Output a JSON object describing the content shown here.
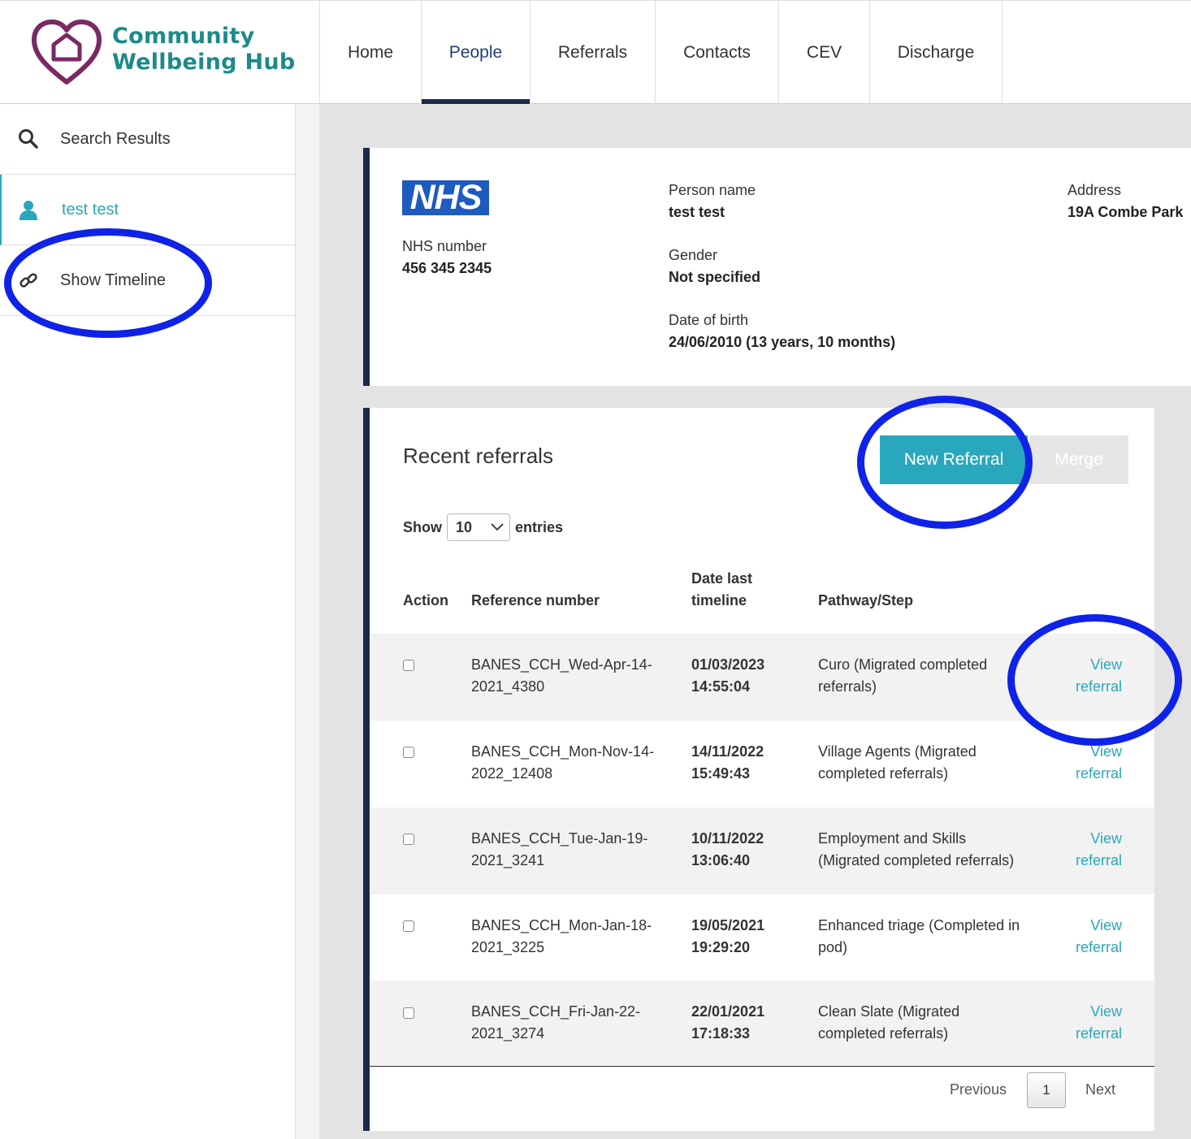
{
  "brand": {
    "line1": "Community",
    "line2": "Wellbeing Hub",
    "color": "#1c8a8a",
    "heart_color": "#7a2a63"
  },
  "nav": [
    {
      "label": "Home",
      "active": false
    },
    {
      "label": "People",
      "active": true
    },
    {
      "label": "Referrals",
      "active": false
    },
    {
      "label": "Contacts",
      "active": false
    },
    {
      "label": "CEV",
      "active": false
    },
    {
      "label": "Discharge",
      "active": false
    }
  ],
  "sidebar": {
    "items": [
      {
        "label": "Search Results",
        "icon": "search-icon"
      },
      {
        "label": "test test",
        "icon": "person-icon",
        "current": true
      },
      {
        "label": "Show Timeline",
        "icon": "link-icon"
      }
    ]
  },
  "person": {
    "nhs_logo": "NHS",
    "nhs_number_label": "NHS number",
    "nhs_number": "456 345 2345",
    "name_label": "Person name",
    "name": "test test",
    "gender_label": "Gender",
    "gender": "Not specified",
    "dob_label": "Date of birth",
    "dob": "24/06/2010 (13 years, 10 months)",
    "address_label": "Address",
    "address": "19A Combe Park"
  },
  "referrals": {
    "title": "Recent referrals",
    "new_button": "New Referral",
    "merge_button": "Merge",
    "show_label": "Show",
    "page_size": "10",
    "entries_label": "entries",
    "columns": [
      "Action",
      "Reference number",
      "Date last timeline",
      "Pathway/Step",
      ""
    ],
    "column_date_line1": "Date last",
    "column_date_line2": "timeline",
    "rows": [
      {
        "ref1": "BANES_CCH_Wed-Apr-14-",
        "ref2": "2021_4380",
        "date": "01/03/2023",
        "time": "14:55:04",
        "path1": "Curo (Migrated completed",
        "path2": "referrals)",
        "link1": "View",
        "link2": "referral"
      },
      {
        "ref1": "BANES_CCH_Mon-Nov-14-",
        "ref2": "2022_12408",
        "date": "14/11/2022",
        "time": "15:49:43",
        "path1": "Village Agents (Migrated",
        "path2": "completed referrals)",
        "link1": "View",
        "link2": "referral"
      },
      {
        "ref1": "BANES_CCH_Tue-Jan-19-",
        "ref2": "2021_3241",
        "date": "10/11/2022",
        "time": "13:06:40",
        "path1": "Employment and Skills",
        "path2": "(Migrated completed referrals)",
        "link1": "View",
        "link2": "referral"
      },
      {
        "ref1": "BANES_CCH_Mon-Jan-18-",
        "ref2": "2021_3225",
        "date": "19/05/2021",
        "time": "19:29:20",
        "path1": "Enhanced triage (Completed in",
        "path2": "pod)",
        "link1": "View",
        "link2": "referral"
      },
      {
        "ref1": "BANES_CCH_Fri-Jan-22-",
        "ref2": "2021_3274",
        "date": "22/01/2021",
        "time": "17:18:33",
        "path1": "Clean Slate (Migrated",
        "path2": "completed referrals)",
        "link1": "View",
        "link2": "referral"
      }
    ],
    "pagination": {
      "previous": "Previous",
      "current": "1",
      "next": "Next"
    }
  },
  "colors": {
    "accent": "#29a7bd",
    "navy": "#1b2a4e",
    "annotation": "#0f23e8"
  }
}
